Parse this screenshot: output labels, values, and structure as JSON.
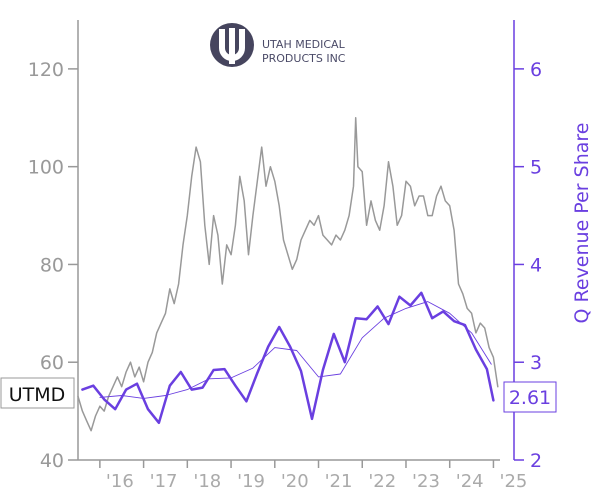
{
  "chart_data": {
    "type": "line",
    "ticker": "UTMD",
    "last_value_label": "2.61",
    "logo": {
      "line1": "UTAH MEDICAL",
      "line2": "PRODUCTS INC"
    },
    "x_tick_labels": [
      "'16",
      "'17",
      "'18",
      "'19",
      "'20",
      "'21",
      "'22",
      "'23",
      "'24",
      "'25"
    ],
    "xlim": [
      2015.5,
      2025.15
    ],
    "left_axis": {
      "ylim": [
        40,
        130
      ],
      "ticks": [
        40,
        60,
        80,
        100,
        120
      ],
      "color": "#999999"
    },
    "right_axis": {
      "label": "Q Revenue Per Share",
      "ylim": [
        2,
        6.5
      ],
      "ticks": [
        2,
        3,
        4,
        5,
        6
      ],
      "color": "#6a3fe0"
    },
    "series": [
      {
        "kind": "price",
        "axis": "left",
        "color": "#999999",
        "x": [
          2015.5,
          2015.6,
          2015.7,
          2015.8,
          2015.9,
          2016.0,
          2016.1,
          2016.2,
          2016.3,
          2016.4,
          2016.5,
          2016.6,
          2016.7,
          2016.8,
          2016.9,
          2017.0,
          2017.1,
          2017.2,
          2017.3,
          2017.4,
          2017.5,
          2017.6,
          2017.7,
          2017.8,
          2017.9,
          2018.0,
          2018.1,
          2018.2,
          2018.3,
          2018.4,
          2018.5,
          2018.6,
          2018.7,
          2018.8,
          2018.9,
          2019.0,
          2019.1,
          2019.2,
          2019.3,
          2019.4,
          2019.5,
          2019.6,
          2019.7,
          2019.8,
          2019.9,
          2020.0,
          2020.1,
          2020.2,
          2020.3,
          2020.4,
          2020.5,
          2020.6,
          2020.7,
          2020.8,
          2020.9,
          2021.0,
          2021.1,
          2021.2,
          2021.3,
          2021.4,
          2021.5,
          2021.6,
          2021.7,
          2021.8,
          2021.85,
          2021.9,
          2022.0,
          2022.1,
          2022.2,
          2022.3,
          2022.4,
          2022.5,
          2022.6,
          2022.7,
          2022.8,
          2022.9,
          2023.0,
          2023.1,
          2023.2,
          2023.3,
          2023.4,
          2023.5,
          2023.6,
          2023.7,
          2023.8,
          2023.9,
          2024.0,
          2024.1,
          2024.2,
          2024.3,
          2024.4,
          2024.5,
          2024.6,
          2024.7,
          2024.8,
          2024.9,
          2025.0,
          2025.1
        ],
        "values": [
          53,
          50,
          48,
          46,
          49,
          51,
          50,
          53,
          55,
          57,
          55,
          58,
          60,
          57,
          59,
          56,
          60,
          62,
          66,
          68,
          70,
          75,
          72,
          76,
          84,
          90,
          98,
          104,
          101,
          88,
          80,
          90,
          86,
          76,
          84,
          82,
          88,
          98,
          93,
          82,
          90,
          97,
          104,
          96,
          100,
          97,
          92,
          85,
          82,
          79,
          81,
          85,
          87,
          89,
          88,
          90,
          86,
          85,
          84,
          86,
          85,
          87,
          90,
          96,
          110,
          100,
          99,
          88,
          93,
          89,
          87,
          92,
          101,
          96,
          88,
          90,
          97,
          96,
          92,
          94,
          94,
          90,
          90,
          94,
          96,
          93,
          92,
          87,
          76,
          74,
          71,
          70,
          66,
          68,
          67,
          63,
          61,
          55
        ]
      },
      {
        "kind": "q_revenue_per_share",
        "axis": "right",
        "color": "#6a3fe0",
        "x": [
          2015.6,
          2015.85,
          2016.1,
          2016.35,
          2016.6,
          2016.85,
          2017.1,
          2017.35,
          2017.6,
          2017.85,
          2018.1,
          2018.35,
          2018.6,
          2018.85,
          2019.1,
          2019.35,
          2019.6,
          2019.85,
          2020.1,
          2020.35,
          2020.6,
          2020.85,
          2021.1,
          2021.35,
          2021.6,
          2021.85,
          2022.1,
          2022.35,
          2022.6,
          2022.85,
          2023.1,
          2023.35,
          2023.6,
          2023.85,
          2024.1,
          2024.35,
          2024.6,
          2024.85,
          2025.0
        ],
        "values": [
          2.72,
          2.76,
          2.62,
          2.52,
          2.72,
          2.78,
          2.52,
          2.38,
          2.76,
          2.9,
          2.72,
          2.74,
          2.92,
          2.93,
          2.76,
          2.6,
          2.89,
          3.16,
          3.36,
          3.16,
          2.91,
          2.42,
          2.92,
          3.29,
          3.0,
          3.45,
          3.44,
          3.57,
          3.39,
          3.67,
          3.58,
          3.71,
          3.45,
          3.52,
          3.42,
          3.38,
          3.13,
          2.93,
          2.61
        ]
      },
      {
        "kind": "q_revenue_per_share_average",
        "axis": "right",
        "color": "#6a3fe0",
        "x": [
          2016.0,
          2016.5,
          2017.0,
          2017.5,
          2018.0,
          2018.5,
          2019.0,
          2019.5,
          2020.0,
          2020.5,
          2021.0,
          2021.5,
          2022.0,
          2022.5,
          2023.0,
          2023.5,
          2024.0,
          2024.5,
          2024.95
        ],
        "values": [
          2.64,
          2.66,
          2.63,
          2.66,
          2.72,
          2.83,
          2.84,
          2.94,
          3.15,
          3.12,
          2.85,
          2.88,
          3.25,
          3.45,
          3.55,
          3.62,
          3.5,
          3.3,
          2.98
        ]
      }
    ]
  }
}
